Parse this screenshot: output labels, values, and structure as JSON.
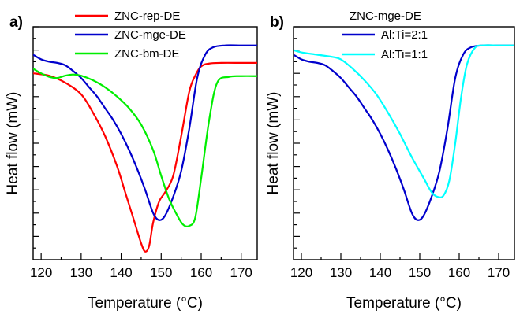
{
  "chart_data": [
    {
      "type": "line",
      "panel_label": "a)",
      "title": "",
      "xlabel": "Temperature (°C)",
      "ylabel": "Heat flow (mW)",
      "xlim": [
        118,
        174
      ],
      "ylim": [
        0,
        10
      ],
      "xticks": [
        120,
        130,
        140,
        150,
        160,
        170
      ],
      "legend_position": "top-center",
      "grid": false,
      "y_tick_labels": false,
      "series": [
        {
          "name": "ZNC-rep-DE",
          "color": "#ff0000",
          "x": [
            118,
            122,
            126,
            130,
            133,
            136,
            139,
            141,
            143,
            145,
            146,
            147,
            148,
            149.5,
            151,
            153,
            155,
            157,
            158.5,
            160,
            162,
            165,
            170,
            174
          ],
          "y": [
            8.0,
            7.9,
            7.6,
            7.1,
            6.3,
            5.3,
            4.0,
            2.9,
            1.8,
            0.7,
            0.35,
            0.6,
            1.6,
            2.5,
            2.9,
            3.6,
            5.3,
            7.2,
            7.9,
            8.3,
            8.42,
            8.45,
            8.45,
            8.45
          ]
        },
        {
          "name": "ZNC-mge-DE",
          "color": "#0000cc",
          "x": [
            118,
            120,
            122,
            124,
            126,
            128,
            130,
            132,
            134,
            136,
            138,
            140,
            142,
            144,
            146,
            148,
            149.5,
            151,
            153,
            155,
            157,
            159,
            161,
            163,
            166,
            170,
            174
          ],
          "y": [
            8.8,
            8.6,
            8.5,
            8.45,
            8.35,
            8.1,
            7.8,
            7.4,
            7.0,
            6.5,
            6.0,
            5.4,
            4.7,
            3.9,
            3.0,
            2.0,
            1.7,
            1.9,
            2.7,
            3.8,
            5.6,
            7.8,
            8.8,
            9.12,
            9.2,
            9.2,
            9.2
          ]
        },
        {
          "name": "ZNC-bm-DE",
          "color": "#00ee00",
          "x": [
            118,
            120,
            122,
            124,
            126,
            128,
            130,
            133,
            136,
            139,
            142,
            145,
            148,
            150,
            152,
            154,
            155.5,
            157,
            158.5,
            160,
            162,
            164,
            167,
            170,
            174
          ],
          "y": [
            8.2,
            8.0,
            7.85,
            7.8,
            7.9,
            7.95,
            7.9,
            7.7,
            7.4,
            7.0,
            6.5,
            5.8,
            4.7,
            3.6,
            2.6,
            1.9,
            1.5,
            1.45,
            1.8,
            3.5,
            6.0,
            7.6,
            7.85,
            7.88,
            7.88
          ]
        }
      ]
    },
    {
      "type": "line",
      "panel_label": "b)",
      "title": "",
      "xlabel": "Temperature (°C)",
      "ylabel": "Heat flow (mW)",
      "xlim": [
        118,
        174
      ],
      "ylim": [
        0,
        10
      ],
      "xticks": [
        120,
        130,
        140,
        150,
        160,
        170
      ],
      "legend_title": "ZNC-mge-DE",
      "legend_position": "top-center",
      "grid": false,
      "y_tick_labels": false,
      "series": [
        {
          "name": "Al:Ti=2:1",
          "color": "#0000cc",
          "x": [
            118,
            120,
            122,
            124,
            126,
            128,
            130,
            132,
            134,
            136,
            138,
            140,
            142,
            144,
            146,
            148,
            149.5,
            151,
            153,
            155,
            157,
            159,
            161,
            163,
            166,
            170,
            174
          ],
          "y": [
            8.8,
            8.6,
            8.5,
            8.45,
            8.35,
            8.1,
            7.8,
            7.4,
            7.0,
            6.5,
            6.0,
            5.4,
            4.7,
            3.9,
            3.0,
            2.0,
            1.7,
            1.9,
            2.7,
            3.8,
            5.6,
            7.8,
            8.8,
            9.12,
            9.2,
            9.2,
            9.2
          ]
        },
        {
          "name": "Al:Ti=1:1",
          "color": "#00ffff",
          "x": [
            118,
            120,
            124,
            128,
            130,
            133,
            136,
            139,
            142,
            145,
            148,
            151,
            153,
            154.5,
            156,
            157.5,
            159,
            160.5,
            162,
            164,
            166,
            170,
            174
          ],
          "y": [
            9.0,
            8.9,
            8.8,
            8.7,
            8.6,
            8.2,
            7.7,
            7.1,
            6.3,
            5.4,
            4.4,
            3.5,
            2.9,
            2.7,
            2.75,
            3.4,
            5.0,
            7.0,
            8.4,
            9.1,
            9.2,
            9.2,
            9.2
          ]
        }
      ]
    }
  ]
}
